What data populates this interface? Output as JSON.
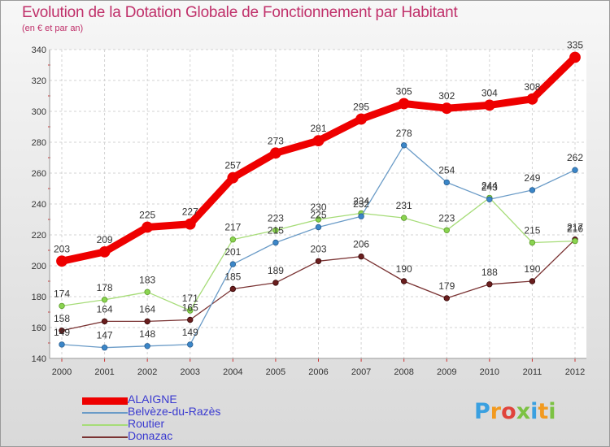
{
  "chart_data": {
    "type": "line",
    "title": "Evolution de la Dotation Globale de Fonctionnement par Habitant",
    "subtitle": "(en € et par an)",
    "x": [
      "2000",
      "2001",
      "2002",
      "2003",
      "2004",
      "2005",
      "2006",
      "2007",
      "2008",
      "2009",
      "2010",
      "2011",
      "2012"
    ],
    "ylim": [
      140,
      340
    ],
    "yticks": [
      140,
      160,
      180,
      200,
      220,
      240,
      260,
      280,
      300,
      320,
      340
    ],
    "grid": true,
    "legend_position": "bottom-left",
    "series": [
      {
        "name": "ALAIGNE",
        "color": "#ee0000",
        "values": [
          203,
          209,
          225,
          227,
          257,
          273,
          281,
          295,
          305,
          302,
          304,
          308,
          335
        ]
      },
      {
        "name": "Belvèze-du-Razès",
        "color": "#6a9bc7",
        "values": [
          149,
          147,
          148,
          149,
          201,
          215,
          225,
          232,
          278,
          254,
          243,
          249,
          262
        ]
      },
      {
        "name": "Routier",
        "color": "#a6dc78",
        "values": [
          174,
          178,
          183,
          171,
          217,
          223,
          230,
          234,
          231,
          223,
          244,
          215,
          216
        ]
      },
      {
        "name": "Donazac",
        "color": "#7a3333",
        "values": [
          158,
          164,
          164,
          165,
          185,
          189,
          203,
          206,
          190,
          179,
          188,
          190,
          217
        ]
      }
    ]
  },
  "logo": {
    "letters": [
      "P",
      "r",
      "o",
      "x",
      "i",
      "t",
      "i"
    ],
    "colors": [
      "#3aa0e0",
      "#f29a1f",
      "#e0443c",
      "#7cc243",
      "#3aa0e0",
      "#f29a1f",
      "#7cc243"
    ]
  }
}
